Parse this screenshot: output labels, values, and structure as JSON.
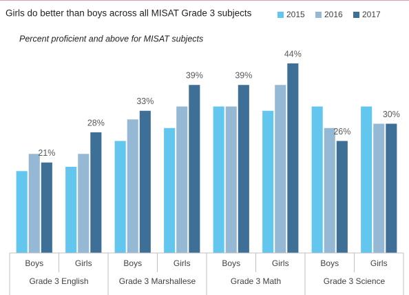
{
  "chart_data": {
    "type": "bar",
    "title": "Girls do better than boys across all MISAT Grade 3 subjects",
    "subtitle": "Percent proficient and above for MISAT subjects",
    "categories": [
      "Boys",
      "Girls",
      "Boys",
      "Girls",
      "Boys",
      "Girls",
      "Boys",
      "Girls"
    ],
    "groups": [
      "Grade 3 English",
      "Grade 3 Marshallese",
      "Grade 3 Math",
      "Grade 3 Science"
    ],
    "series": [
      {
        "name": "2015",
        "color": "#63c6ef",
        "values": [
          19,
          20,
          26,
          29,
          34,
          33,
          34,
          34
        ]
      },
      {
        "name": "2016",
        "color": "#95b9d5",
        "values": [
          23,
          23,
          31,
          34,
          34,
          39,
          29,
          30
        ]
      },
      {
        "name": "2017",
        "color": "#3e6f97",
        "values": [
          21,
          28,
          33,
          39,
          39,
          44,
          26,
          30
        ],
        "value_labels": [
          "21%",
          "28%",
          "33%",
          "39%",
          "39%",
          "44%",
          "26%",
          "30%"
        ]
      }
    ],
    "ylim": [
      0,
      50
    ],
    "legend": "top-right"
  }
}
